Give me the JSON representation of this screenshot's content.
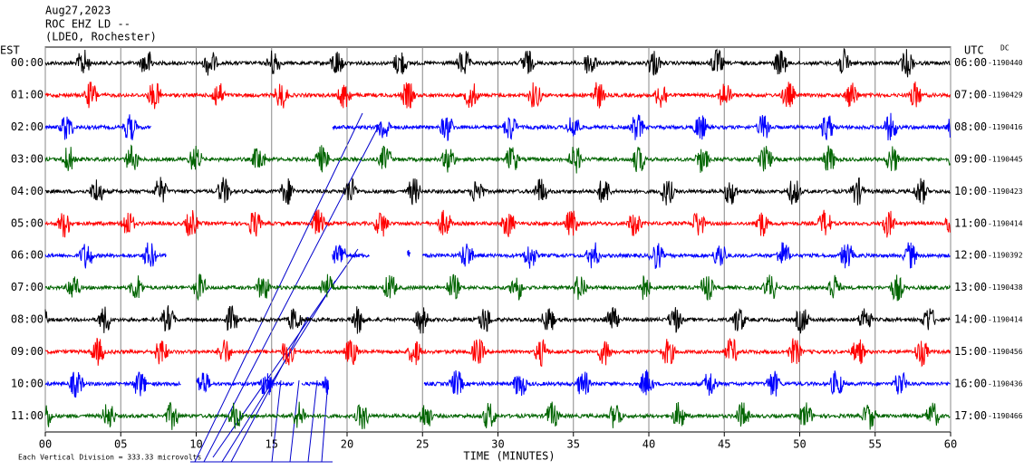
{
  "chart_data": {
    "type": "helicorder",
    "title_lines": [
      "Aug27,2023",
      "ROC EHZ LD --",
      "(LDEO, Rochester)"
    ],
    "left_axis_label": "EST",
    "right_axis_label": "UTC",
    "right_axis_note": "DC",
    "x_label": "TIME (MINUTES)",
    "scale_note": "Each Vertical Division =  333.33 microvolts",
    "xlim": [
      0,
      60
    ],
    "xticks": [
      {
        "value": 0,
        "label": "00"
      },
      {
        "value": 5,
        "label": "05"
      },
      10,
      15,
      20,
      25,
      30,
      35,
      40,
      45,
      50,
      55,
      60
    ],
    "grid": true,
    "rows": [
      {
        "est": "00:00",
        "utc": "06:00",
        "dc": "-1190440",
        "color": "#000000",
        "gaps": []
      },
      {
        "est": "01:00",
        "utc": "07:00",
        "dc": "-1190429",
        "color": "#ff0000",
        "gaps": []
      },
      {
        "est": "02:00",
        "utc": "08:00",
        "dc": "-1190416",
        "color": "#0000ff",
        "gaps": [
          [
            7,
            19
          ]
        ]
      },
      {
        "est": "03:00",
        "utc": "09:00",
        "dc": "-1190445",
        "color": "#006400",
        "gaps": []
      },
      {
        "est": "04:00",
        "utc": "10:00",
        "dc": "-1190423",
        "color": "#000000",
        "gaps": []
      },
      {
        "est": "05:00",
        "utc": "11:00",
        "dc": "-1190414",
        "color": "#ff0000",
        "gaps": []
      },
      {
        "est": "06:00",
        "utc": "12:00",
        "dc": "-1190392",
        "color": "#0000ff",
        "gaps": [
          [
            8,
            19
          ],
          [
            21.5,
            24
          ],
          [
            24.2,
            25
          ]
        ]
      },
      {
        "est": "07:00",
        "utc": "13:00",
        "dc": "-1190438",
        "color": "#006400",
        "gaps": []
      },
      {
        "est": "08:00",
        "utc": "14:00",
        "dc": "-1190414",
        "color": "#000000",
        "gaps": []
      },
      {
        "est": "09:00",
        "utc": "15:00",
        "dc": "-1190456",
        "color": "#ff0000",
        "gaps": []
      },
      {
        "est": "10:00",
        "utc": "16:00",
        "dc": "-1190436",
        "color": "#0000ff",
        "gaps": [
          [
            9,
            10
          ],
          [
            16.5,
            17
          ],
          [
            18.8,
            25.1
          ]
        ]
      },
      {
        "est": "11:00",
        "utc": "17:00",
        "dc": "-1190466",
        "color": "#006400",
        "gaps": []
      }
    ]
  }
}
